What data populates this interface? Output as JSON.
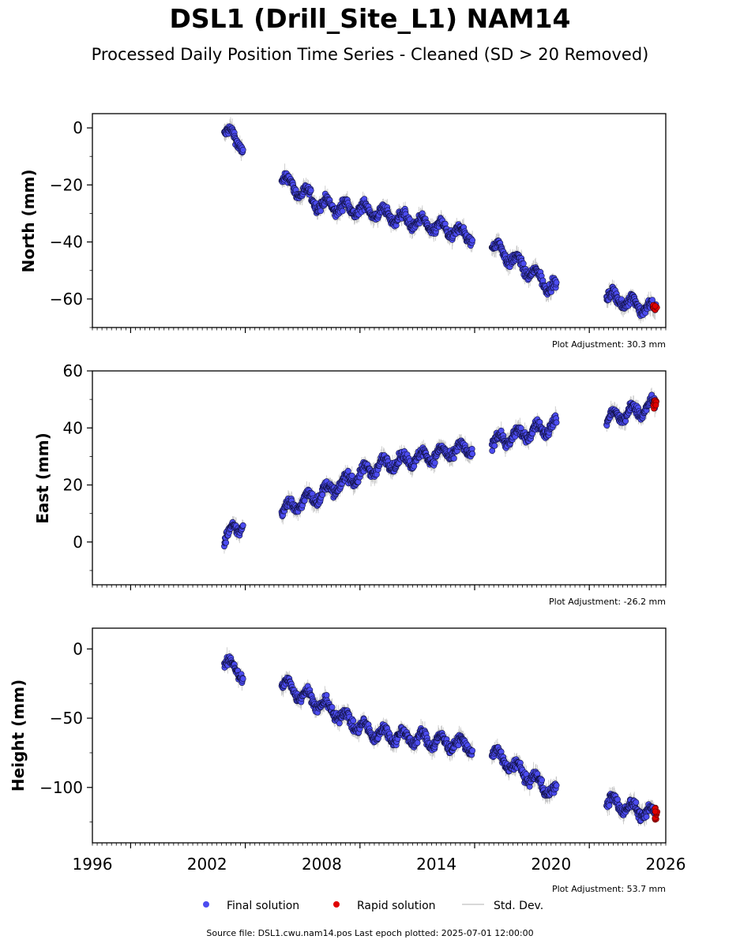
{
  "title": "DSL1 (Drill_Site_L1) NAM14",
  "subtitle": "Processed Daily Position Time Series - Cleaned (SD > 20 Removed)",
  "footer": "Source file: DSL1.cwu.nam14.pos  Last epoch plotted: 2025-07-01 12:00:00",
  "legend": {
    "final_label": "Final solution",
    "rapid_label": "Rapid solution",
    "std_label": "Std. Dev."
  },
  "colors": {
    "final": "#4c4cf0",
    "rapid": "#e00000",
    "std": "#bbbbbb",
    "edge": "#101040"
  },
  "chart_data": [
    {
      "type": "scatter",
      "ylabel": "North (mm)",
      "adjustment": "Plot Adjustment: 30.3 mm",
      "xlim": [
        1996,
        2026
      ],
      "ylim": [
        -70,
        5
      ],
      "yticks": [
        0,
        -20,
        -40,
        -60
      ],
      "yticklabels": [
        "0",
        "−20",
        "−40",
        "−60"
      ],
      "series": [
        {
          "segments": [
            {
              "x0": 2002.9,
              "x1": 2003.9,
              "y0": -1,
              "y1": -6
            },
            {
              "x0": 2005.9,
              "x1": 2008.0,
              "y0": -18,
              "y1": -27
            },
            {
              "x0": 2008.0,
              "x1": 2010.5,
              "y0": -27,
              "y1": -29
            },
            {
              "x0": 2010.5,
              "x1": 2015.9,
              "y0": -29,
              "y1": -38
            },
            {
              "x0": 2016.9,
              "x1": 2020.3,
              "y0": -41,
              "y1": -57
            },
            {
              "x0": 2022.9,
              "x1": 2025.5,
              "y0": -59,
              "y1": -64
            }
          ]
        },
        {
          "x": [
            2025.4,
            2025.45,
            2025.5
          ],
          "y": [
            -62.5,
            -63.5,
            -63
          ]
        }
      ]
    },
    {
      "type": "scatter",
      "ylabel": "East (mm)",
      "adjustment": "Plot Adjustment: -26.2 mm",
      "xlim": [
        1996,
        2026
      ],
      "ylim": [
        -15,
        60
      ],
      "yticks": [
        60,
        40,
        20,
        0
      ],
      "yticklabels": [
        "60",
        "40",
        "20",
        "0"
      ],
      "series": [
        {
          "segments": [
            {
              "x0": 2002.9,
              "x1": 2003.9,
              "y0": 1,
              "y1": 7
            },
            {
              "x0": 2005.9,
              "x1": 2008.0,
              "y0": 11,
              "y1": 17
            },
            {
              "x0": 2008.0,
              "x1": 2011.0,
              "y0": 17,
              "y1": 27
            },
            {
              "x0": 2011.0,
              "x1": 2015.9,
              "y0": 27,
              "y1": 33
            },
            {
              "x0": 2016.9,
              "x1": 2020.3,
              "y0": 35,
              "y1": 41
            },
            {
              "x0": 2022.9,
              "x1": 2025.5,
              "y0": 43,
              "y1": 48
            }
          ]
        },
        {
          "x": [
            2025.4,
            2025.45,
            2025.5
          ],
          "y": [
            48,
            49.5,
            49
          ]
        }
      ]
    },
    {
      "type": "scatter",
      "ylabel": "Height (mm)",
      "adjustment": "Plot Adjustment: 53.7 mm",
      "xlim": [
        1996,
        2026
      ],
      "ylim": [
        -140,
        15
      ],
      "yticks": [
        0,
        -50,
        -100
      ],
      "yticklabels": [
        "0",
        "−50",
        "−100"
      ],
      "xticks": [
        1996,
        2002,
        2008,
        2014,
        2020,
        2026
      ],
      "xticklabels": [
        "1996",
        "2002",
        "2008",
        "2014",
        "2020",
        "2026"
      ],
      "series": [
        {
          "segments": [
            {
              "x0": 2002.9,
              "x1": 2003.9,
              "y0": -10,
              "y1": -18
            },
            {
              "x0": 2005.9,
              "x1": 2008.0,
              "y0": -25,
              "y1": -40
            },
            {
              "x0": 2008.0,
              "x1": 2010.5,
              "y0": -40,
              "y1": -60
            },
            {
              "x0": 2010.5,
              "x1": 2015.9,
              "y0": -60,
              "y1": -70
            },
            {
              "x0": 2016.9,
              "x1": 2020.3,
              "y0": -75,
              "y1": -105
            },
            {
              "x0": 2022.9,
              "x1": 2025.5,
              "y0": -110,
              "y1": -120
            }
          ]
        },
        {
          "x": [
            2025.4,
            2025.45,
            2025.5
          ],
          "y": [
            -115,
            -122,
            -118
          ]
        }
      ]
    }
  ]
}
